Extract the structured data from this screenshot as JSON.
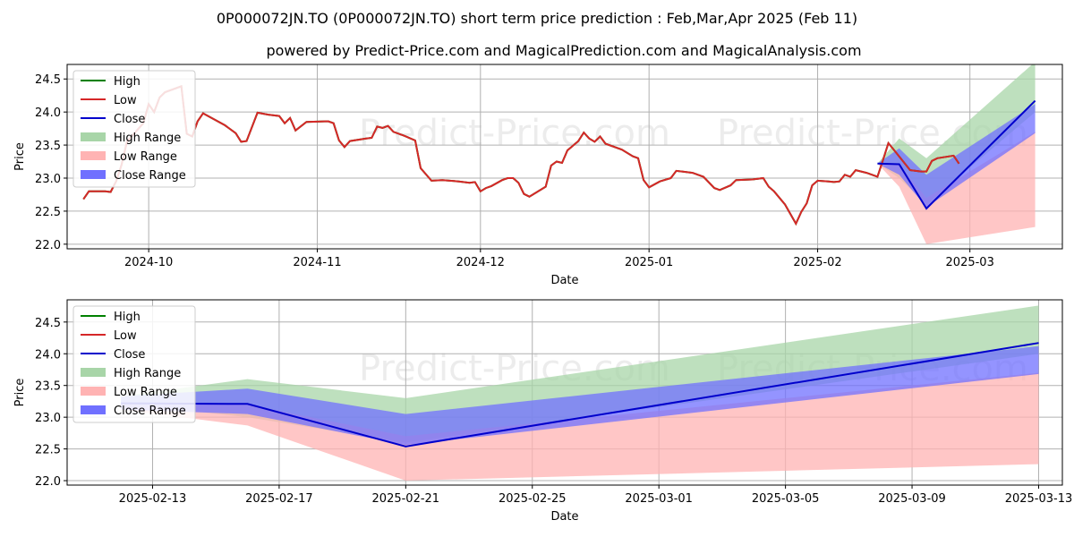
{
  "title": "0P000072JN.TO (0P000072JN.TO) short term price prediction : Feb,Mar,Apr 2025 (Feb 11)",
  "subtitle": "powered by Predict-Price.com and MagicalPrediction.com and MagicalAnalysis.com",
  "watermark": "Predict-Price.com",
  "colors": {
    "high": "#008000",
    "low": "#d62728",
    "close": "#0000cc",
    "high_range": "#a8d5a8",
    "low_range": "#ffb3b3",
    "close_range": "#7070ff"
  },
  "chart_data": [
    {
      "type": "line",
      "xlabel": "Date",
      "ylabel": "Price",
      "xlim": [
        "2024-09-16",
        "2025-03-18"
      ],
      "ylim": [
        21.93,
        24.72
      ],
      "xticks": [
        "2024-10",
        "2024-11",
        "2024-12",
        "2025-01",
        "2025-02",
        "2025-03"
      ],
      "xtick_dates": [
        "2024-10-01",
        "2024-11-01",
        "2024-12-01",
        "2025-01-01",
        "2025-02-01",
        "2025-03-01"
      ],
      "yticks": [
        "22.0",
        "22.5",
        "23.0",
        "23.5",
        "24.0",
        "24.5"
      ],
      "yticks_values": [
        22.0,
        22.5,
        23.0,
        23.5,
        24.0,
        24.5
      ],
      "grid": true,
      "legend_position": "top-left",
      "legend": [
        "High",
        "Low",
        "Close",
        "High Range",
        "Low Range",
        "Close Range"
      ],
      "history": [
        [
          "2024-09-19",
          22.68
        ],
        [
          "2024-09-20",
          22.8
        ],
        [
          "2024-09-23",
          22.8
        ],
        [
          "2024-09-24",
          22.79
        ],
        [
          "2024-09-25",
          22.95
        ],
        [
          "2024-09-26",
          23.2
        ],
        [
          "2024-09-27",
          23.55
        ],
        [
          "2024-09-30",
          23.83
        ],
        [
          "2024-10-01",
          24.12
        ],
        [
          "2024-10-02",
          24.0
        ],
        [
          "2024-10-03",
          24.22
        ],
        [
          "2024-10-04",
          24.3
        ],
        [
          "2024-10-07",
          24.39
        ],
        [
          "2024-10-08",
          23.67
        ],
        [
          "2024-10-09",
          23.63
        ],
        [
          "2024-10-10",
          23.86
        ],
        [
          "2024-10-11",
          23.98
        ],
        [
          "2024-10-15",
          23.8
        ],
        [
          "2024-10-17",
          23.68
        ],
        [
          "2024-10-18",
          23.55
        ],
        [
          "2024-10-19",
          23.56
        ],
        [
          "2024-10-21",
          23.99
        ],
        [
          "2024-10-23",
          23.96
        ],
        [
          "2024-10-25",
          23.94
        ],
        [
          "2024-10-26",
          23.83
        ],
        [
          "2024-10-27",
          23.91
        ],
        [
          "2024-10-28",
          23.72
        ],
        [
          "2024-10-30",
          23.85
        ],
        [
          "2024-11-03",
          23.86
        ],
        [
          "2024-11-04",
          23.83
        ],
        [
          "2024-11-05",
          23.57
        ],
        [
          "2024-11-06",
          23.47
        ],
        [
          "2024-11-07",
          23.56
        ],
        [
          "2024-11-10",
          23.6
        ],
        [
          "2024-11-11",
          23.61
        ],
        [
          "2024-11-12",
          23.78
        ],
        [
          "2024-11-13",
          23.76
        ],
        [
          "2024-11-14",
          23.79
        ],
        [
          "2024-11-15",
          23.7
        ],
        [
          "2024-11-17",
          23.64
        ],
        [
          "2024-11-19",
          23.57
        ],
        [
          "2024-11-20",
          23.15
        ],
        [
          "2024-11-22",
          22.96
        ],
        [
          "2024-11-24",
          22.97
        ],
        [
          "2024-11-27",
          22.95
        ],
        [
          "2024-11-29",
          22.93
        ],
        [
          "2024-11-30",
          22.94
        ],
        [
          "2024-12-01",
          22.8
        ],
        [
          "2024-12-02",
          22.85
        ],
        [
          "2024-12-03",
          22.88
        ],
        [
          "2024-12-05",
          22.97
        ],
        [
          "2024-12-06",
          23.0
        ],
        [
          "2024-12-07",
          23.0
        ],
        [
          "2024-12-08",
          22.93
        ],
        [
          "2024-12-09",
          22.76
        ],
        [
          "2024-12-10",
          22.72
        ],
        [
          "2024-12-13",
          22.87
        ],
        [
          "2024-12-14",
          23.19
        ],
        [
          "2024-12-15",
          23.25
        ],
        [
          "2024-12-16",
          23.23
        ],
        [
          "2024-12-17",
          23.42
        ],
        [
          "2024-12-19",
          23.56
        ],
        [
          "2024-12-20",
          23.69
        ],
        [
          "2024-12-21",
          23.6
        ],
        [
          "2024-12-22",
          23.55
        ],
        [
          "2024-12-23",
          23.63
        ],
        [
          "2024-12-24",
          23.52
        ],
        [
          "2024-12-27",
          23.43
        ],
        [
          "2024-12-29",
          23.33
        ],
        [
          "2024-12-30",
          23.3
        ],
        [
          "2024-12-31",
          22.97
        ],
        [
          "2025-01-01",
          22.86
        ],
        [
          "2025-01-03",
          22.95
        ],
        [
          "2025-01-05",
          23.0
        ],
        [
          "2025-01-06",
          23.11
        ],
        [
          "2025-01-09",
          23.08
        ],
        [
          "2025-01-11",
          23.02
        ],
        [
          "2025-01-13",
          22.85
        ],
        [
          "2025-01-14",
          22.82
        ],
        [
          "2025-01-16",
          22.89
        ],
        [
          "2025-01-17",
          22.97
        ],
        [
          "2025-01-20",
          22.98
        ],
        [
          "2025-01-22",
          23.0
        ],
        [
          "2025-01-23",
          22.87
        ],
        [
          "2025-01-24",
          22.8
        ],
        [
          "2025-01-26",
          22.6
        ],
        [
          "2025-01-28",
          22.31
        ],
        [
          "2025-01-29",
          22.49
        ],
        [
          "2025-01-30",
          22.62
        ],
        [
          "2025-01-31",
          22.89
        ],
        [
          "2025-02-01",
          22.96
        ],
        [
          "2025-02-03",
          22.95
        ],
        [
          "2025-02-04",
          22.94
        ],
        [
          "2025-02-05",
          22.95
        ],
        [
          "2025-02-06",
          23.05
        ],
        [
          "2025-02-07",
          23.02
        ],
        [
          "2025-02-08",
          23.12
        ],
        [
          "2025-02-10",
          23.08
        ],
        [
          "2025-02-12",
          23.02
        ],
        [
          "2025-02-13",
          23.27
        ],
        [
          "2025-02-14",
          23.53
        ],
        [
          "2025-02-15",
          23.43
        ],
        [
          "2025-02-18",
          23.12
        ],
        [
          "2025-02-20",
          23.1
        ],
        [
          "2025-02-21",
          23.1
        ],
        [
          "2025-02-22",
          23.26
        ],
        [
          "2025-02-23",
          23.3
        ],
        [
          "2025-02-26",
          23.34
        ],
        [
          "2025-02-27",
          23.22
        ]
      ],
      "forecast_dates": [
        "2025-02-12",
        "2025-02-16",
        "2025-02-21",
        "2025-03-13"
      ],
      "close": [
        23.22,
        23.21,
        22.54,
        24.17
      ],
      "high_range": {
        "upper": [
          23.22,
          23.6,
          23.3,
          24.76
        ],
        "lower": [
          23.22,
          23.0,
          22.6,
          24.0
        ]
      },
      "low_range": {
        "upper": [
          23.22,
          23.2,
          22.7,
          23.7
        ],
        "lower": [
          23.22,
          22.87,
          22.0,
          22.26
        ]
      },
      "close_range": {
        "upper": [
          23.22,
          23.45,
          23.05,
          24.12
        ],
        "lower": [
          23.22,
          23.05,
          22.56,
          23.68
        ]
      }
    },
    {
      "type": "line",
      "xlabel": "Date",
      "ylabel": "Price",
      "xlim": [
        "2025-02-10.3",
        "2025-03-13.75"
      ],
      "ylim": [
        21.93,
        24.85
      ],
      "xticks": [
        "2025-02-13",
        "2025-02-17",
        "2025-02-21",
        "2025-02-25",
        "2025-03-01",
        "2025-03-05",
        "2025-03-09",
        "2025-03-13"
      ],
      "yticks": [
        "22.0",
        "22.5",
        "23.0",
        "23.5",
        "24.0",
        "24.5"
      ],
      "yticks_values": [
        22.0,
        22.5,
        23.0,
        23.5,
        24.0,
        24.5
      ],
      "grid": true,
      "legend_position": "top-left",
      "legend": [
        "High",
        "Low",
        "Close",
        "High Range",
        "Low Range",
        "Close Range"
      ],
      "forecast_dates": [
        "2025-02-12",
        "2025-02-16",
        "2025-02-21",
        "2025-03-13"
      ],
      "close": [
        23.22,
        23.21,
        22.54,
        24.17
      ],
      "high_range": {
        "upper": [
          23.33,
          23.6,
          23.3,
          24.76
        ],
        "lower": [
          23.22,
          23.0,
          22.6,
          24.0
        ]
      },
      "low_range": {
        "upper": [
          23.22,
          23.2,
          22.7,
          23.7
        ],
        "lower": [
          23.12,
          22.87,
          22.0,
          22.26
        ]
      },
      "close_range": {
        "upper": [
          23.33,
          23.45,
          23.05,
          24.12
        ],
        "lower": [
          23.12,
          23.05,
          22.56,
          23.68
        ]
      }
    }
  ]
}
